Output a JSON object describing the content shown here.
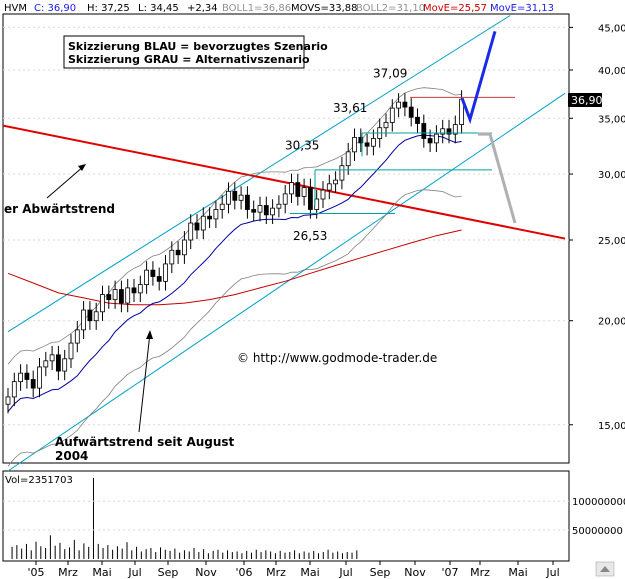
{
  "header": {
    "ticker": "HVM",
    "close": "C: 36,90",
    "high": "H: 37,25",
    "low": "L: 34,45",
    "change": "+2,34",
    "boll1": "BOLL1=36,86",
    "movs": "MOVS=33,88",
    "boll2": "BOLL2=31,10",
    "move1": "MovE=25,57",
    "move2": "MovE=31,13"
  },
  "legend_box": {
    "line1": "Skizzierung BLAU = bevorzugtes Szenario",
    "line2": "Skizzierung GRAU = Alternativszenario"
  },
  "annotations": {
    "downtrend": "er Abwärtstrend",
    "uptrend_line1": "Aufwärtstrend seit August",
    "uptrend_line2": "2004",
    "copyright": "© http://www.godmode-trader.de"
  },
  "price_labels": [
    "37,09",
    "33,61",
    "30,35",
    "26,53"
  ],
  "last_price_label": "36,90",
  "price_axis_ticks": [
    "45,00",
    "40,00",
    "35,00",
    "30,00",
    "25,00",
    "20,00",
    "15,00"
  ],
  "volume_axis_ticks": [
    "100000000",
    "50000000"
  ],
  "volume_label": "Vol=2351703",
  "x_ticks": [
    "'05",
    "Mrz",
    "Mai",
    "Jul",
    "Sep",
    "Nov",
    "'06",
    "Mrz",
    "Mai",
    "Jul",
    "Sep",
    "Nov",
    "'07",
    "Mrz",
    "Mai",
    "Jul"
  ],
  "colors": {
    "up": "#ffffff",
    "down": "#000000",
    "channel": "#00a0c8",
    "downtrend": "#e00000",
    "ma_long": "#c80000",
    "ma_short": "#0000a0",
    "bollinger": "#808080",
    "scenario_blue": "#1a2be8",
    "scenario_grey": "#b0b0b0",
    "support": "#00a0a0",
    "resistance": "#c83c3c"
  },
  "chart_data": {
    "type": "candlestick",
    "title": "HVM",
    "x_unit": "month",
    "x_tick_labels": [
      "'05",
      "Mrz",
      "Mai",
      "Jul",
      "Sep",
      "Nov",
      "'06",
      "Mrz",
      "Mai",
      "Jul",
      "Sep",
      "Nov",
      "'07",
      "Mrz",
      "Mai",
      "Jul"
    ],
    "y_scale": "log",
    "ylim": [
      13,
      46
    ],
    "last": {
      "close": 36.9,
      "high": 37.25,
      "low": 34.45,
      "change": 2.34
    },
    "indicators": {
      "BOLL1": 36.86,
      "MOVS": 33.88,
      "BOLL2": 31.1,
      "MovE_long": 25.57,
      "MovE_short": 31.13
    },
    "marked_levels": [
      37.09,
      33.61,
      30.35,
      26.53
    ],
    "closes": [
      16.2,
      16.9,
      17.3,
      17.0,
      16.6,
      17.6,
      17.9,
      18.2,
      17.4,
      18.0,
      18.8,
      19.5,
      20.6,
      20.0,
      20.5,
      21.5,
      21.2,
      21.8,
      21.0,
      21.9,
      21.6,
      22.1,
      23.0,
      22.6,
      22.3,
      23.4,
      24.3,
      24.0,
      25.0,
      26.2,
      25.7,
      26.7,
      26.5,
      27.2,
      27.6,
      28.6,
      27.9,
      28.3,
      27.2,
      27.0,
      27.5,
      26.8,
      27.3,
      27.6,
      28.4,
      29.3,
      28.2,
      28.9,
      27.2,
      28.0,
      28.7,
      29.2,
      29.5,
      30.7,
      31.9,
      33.2,
      32.7,
      32.4,
      33.1,
      34.1,
      34.6,
      36.0,
      36.6,
      36.1,
      35.1,
      34.5,
      33.1,
      32.7,
      33.5,
      34.0,
      33.5,
      34.4,
      36.9
    ],
    "forecast_blue": [
      [
        37.0,
        34.9,
        44.5
      ]
    ],
    "forecast_grey": [
      [
        33.5,
        26.2
      ]
    ],
    "volume": [
      21000000.0,
      24000000.0,
      18000000.0,
      26000000.0,
      15000000.0,
      30000000.0,
      22000000.0,
      19000000.0,
      41000000.0,
      23000000.0,
      28000000.0,
      17000000.0,
      20000000.0,
      33000000.0,
      15000000.0,
      27000000.0,
      21000000.0,
      140000000.0,
      26000000.0,
      19000000.0,
      24000000.0,
      16000000.0,
      22000000.0,
      18000000.0,
      29000000.0,
      15000000.0,
      21000000.0,
      13000000.0,
      17000000.0,
      19000000.0,
      12000000.0,
      20000000.0,
      16000000.0,
      14000000.0,
      18000000.0,
      11000000.0,
      15000000.0,
      13000000.0,
      19000000.0,
      12000000.0,
      17000000.0,
      10000000.0,
      14000000.0,
      16000000.0,
      11000000.0,
      15000000.0,
      12000000.0,
      13000000.0,
      10000000.0,
      14000000.0,
      11000000.0,
      16000000.0,
      12000000.0,
      15000000.0,
      13000000.0,
      10000000.0,
      14000000.0,
      11000000.0,
      12000000.0,
      15000000.0,
      10000000.0,
      13000000.0,
      11000000.0,
      14000000.0,
      10000000.0,
      12000000.0,
      16000000.0,
      11000000.0,
      13000000.0,
      10000000.0,
      12000000.0,
      11000000.0,
      15000000.0
    ],
    "volume_last": 2351703,
    "legend": [
      "Skizzierung BLAU = bevorzugtes Szenario",
      "Skizzierung GRAU = Alternativszenario"
    ]
  }
}
